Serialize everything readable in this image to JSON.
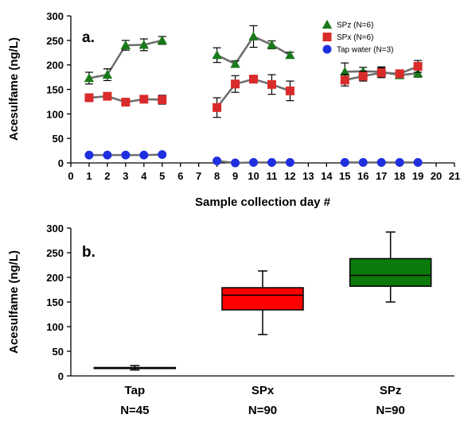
{
  "chart_data": [
    {
      "type": "line",
      "panel_label": "a.",
      "xlabel": "Sample collection day #",
      "ylabel": "Acesulfame (ng/L)",
      "xlim": [
        0,
        21
      ],
      "ylim": [
        0,
        300
      ],
      "xticks": [
        0,
        1,
        2,
        3,
        4,
        5,
        6,
        7,
        8,
        9,
        10,
        11,
        12,
        13,
        14,
        15,
        16,
        17,
        18,
        19,
        20,
        21
      ],
      "yticks": [
        0,
        50,
        100,
        150,
        200,
        250,
        300
      ],
      "grid": false,
      "legend": "top-right",
      "series": [
        {
          "name": "SPz (N=6)",
          "color": "#1a7a1a",
          "marker": "triangle",
          "segments": [
            [
              {
                "x": 1,
                "y": 173,
                "err": 12
              },
              {
                "x": 2,
                "y": 180,
                "err": 12
              },
              {
                "x": 3,
                "y": 240,
                "err": 10
              },
              {
                "x": 4,
                "y": 241,
                "err": 12
              },
              {
                "x": 5,
                "y": 250,
                "err": 8
              }
            ],
            [
              {
                "x": 8,
                "y": 220,
                "err": 15
              },
              {
                "x": 9,
                "y": 202,
                "err": 6
              },
              {
                "x": 10,
                "y": 258,
                "err": 22
              },
              {
                "x": 11,
                "y": 241,
                "err": 8
              },
              {
                "x": 12,
                "y": 220,
                "err": 6
              }
            ],
            [
              {
                "x": 15,
                "y": 186,
                "err": 18
              },
              {
                "x": 16,
                "y": 187,
                "err": 8
              },
              {
                "x": 17,
                "y": 186,
                "err": 10
              },
              {
                "x": 18,
                "y": 179,
                "err": 6
              },
              {
                "x": 19,
                "y": 183,
                "err": 8
              }
            ]
          ]
        },
        {
          "name": "SPx (N=6)",
          "color": "#d92b2b",
          "marker": "square",
          "segments": [
            [
              {
                "x": 1,
                "y": 133,
                "err": 6
              },
              {
                "x": 2,
                "y": 136,
                "err": 5
              },
              {
                "x": 3,
                "y": 124,
                "err": 5
              },
              {
                "x": 4,
                "y": 130,
                "err": 5
              },
              {
                "x": 5,
                "y": 129,
                "err": 9
              }
            ],
            [
              {
                "x": 8,
                "y": 113,
                "err": 20
              },
              {
                "x": 9,
                "y": 161,
                "err": 17
              },
              {
                "x": 10,
                "y": 171,
                "err": 5
              },
              {
                "x": 11,
                "y": 160,
                "err": 20
              },
              {
                "x": 12,
                "y": 147,
                "err": 20
              }
            ],
            [
              {
                "x": 15,
                "y": 169,
                "err": 12
              },
              {
                "x": 16,
                "y": 177,
                "err": 10
              },
              {
                "x": 17,
                "y": 184,
                "err": 10
              },
              {
                "x": 18,
                "y": 182,
                "err": 6
              },
              {
                "x": 19,
                "y": 197,
                "err": 12
              }
            ]
          ]
        },
        {
          "name": "Tap water (N=3)",
          "color": "#1f2fe0",
          "marker": "circle",
          "segments": [
            [
              {
                "x": 1,
                "y": 16,
                "err": 0
              },
              {
                "x": 2,
                "y": 16,
                "err": 0
              },
              {
                "x": 3,
                "y": 16,
                "err": 0
              },
              {
                "x": 4,
                "y": 16,
                "err": 0
              },
              {
                "x": 5,
                "y": 17,
                "err": 0
              }
            ],
            [
              {
                "x": 8,
                "y": 4,
                "err": 0
              },
              {
                "x": 9,
                "y": 0,
                "err": 0
              },
              {
                "x": 10,
                "y": 1,
                "err": 0
              },
              {
                "x": 11,
                "y": 1,
                "err": 0
              },
              {
                "x": 12,
                "y": 1,
                "err": 0
              }
            ],
            [
              {
                "x": 15,
                "y": 1,
                "err": 0
              },
              {
                "x": 16,
                "y": 1,
                "err": 0
              },
              {
                "x": 17,
                "y": 1,
                "err": 0
              },
              {
                "x": 18,
                "y": 1,
                "err": 0
              },
              {
                "x": 19,
                "y": 1,
                "err": 0
              }
            ]
          ]
        }
      ]
    },
    {
      "type": "box",
      "panel_label": "b.",
      "ylabel": "Acesulfame (ng/L)",
      "ylim": [
        0,
        300
      ],
      "yticks": [
        0,
        50,
        100,
        150,
        200,
        250,
        300
      ],
      "grid": false,
      "categories": [
        {
          "label": "Tap",
          "n_label": "N=45",
          "color": "#ffffff",
          "whisker_low": 12,
          "q1": 15,
          "median": 16,
          "q3": 17,
          "whisker_high": 21
        },
        {
          "label": "SPx",
          "n_label": "N=90",
          "color": "#ff0000",
          "whisker_low": 84,
          "q1": 134,
          "median": 164,
          "q3": 179,
          "whisker_high": 213
        },
        {
          "label": "SPz",
          "n_label": "N=90",
          "color": "#0b7a0b",
          "whisker_low": 150,
          "q1": 182,
          "median": 204,
          "q3": 238,
          "whisker_high": 292
        }
      ]
    }
  ]
}
